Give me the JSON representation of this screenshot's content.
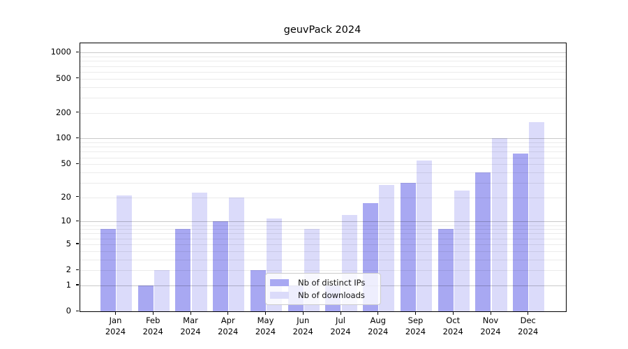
{
  "chart_data": {
    "type": "bar",
    "title": "geuvPack 2024",
    "xlabel": "",
    "ylabel": "",
    "year": "2024",
    "categories": [
      "Jan",
      "Feb",
      "Mar",
      "Apr",
      "May",
      "Jun",
      "Jul",
      "Aug",
      "Sep",
      "Oct",
      "Nov",
      "Dec"
    ],
    "series": [
      {
        "name": "Nb of distinct IPs",
        "color": "#a8a8f2",
        "values": [
          8,
          1,
          8,
          10,
          2,
          1,
          1,
          17,
          30,
          8,
          40,
          66
        ]
      },
      {
        "name": "Nb of downloads",
        "color": "#dbdbfa",
        "values": [
          21,
          2,
          23,
          20,
          11,
          8,
          12,
          28,
          55,
          24,
          100,
          155
        ]
      }
    ],
    "yscale": "log1p",
    "ylim": [
      0,
      1285
    ],
    "yticks": [
      0,
      1,
      2,
      5,
      10,
      20,
      50,
      100,
      200,
      500,
      1000
    ],
    "major_gridlines": [
      1,
      10,
      100,
      1000
    ],
    "minor_gridlines": [
      2,
      3,
      4,
      5,
      6,
      7,
      8,
      9,
      20,
      30,
      40,
      50,
      60,
      70,
      80,
      90,
      200,
      300,
      400,
      500,
      600,
      700,
      800,
      900
    ],
    "grid": true,
    "legend_position": "inside lower-center",
    "colors": {
      "major_grid": "#c9c9c9",
      "minor_grid": "#ebebeb",
      "axis": "#000000",
      "background": "#ffffff"
    }
  }
}
